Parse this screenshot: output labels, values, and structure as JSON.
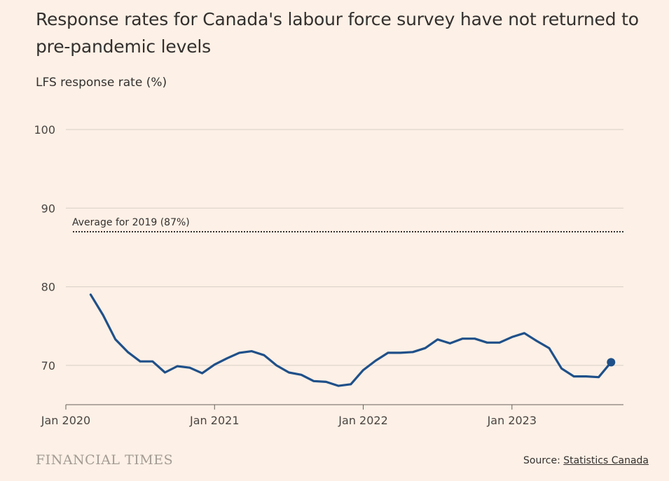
{
  "title": "Response rates for Canada's labour force survey have not returned to pre-pandemic levels",
  "subtitle": "LFS response rate (%)",
  "brand": "FINANCIAL TIMES",
  "source_prefix": "Source: ",
  "source_link": "Statistics Canada",
  "colors": {
    "background": "#fdf0e6",
    "line": "#1f5089",
    "grid": "#d8cfc6",
    "reference": "#33302e"
  },
  "chart_data": {
    "type": "line",
    "title": "Response rates for Canada's labour force survey have not returned to pre-pandemic levels",
    "ylabel": "LFS response rate (%)",
    "xlabel": "",
    "ylim": [
      65,
      100
    ],
    "xlim": [
      "2020-01",
      "2023-10"
    ],
    "yticks": [
      70,
      80,
      90,
      100
    ],
    "xticks": [
      "Jan 2020",
      "Jan 2021",
      "Jan 2022",
      "Jan 2023"
    ],
    "grid": true,
    "reference_line": {
      "value": 87,
      "label": "Average for 2019 (87%)"
    },
    "series": [
      {
        "x": [
          "2020-03",
          "2020-04",
          "2020-05",
          "2020-06",
          "2020-07",
          "2020-08",
          "2020-09",
          "2020-10",
          "2020-11",
          "2020-12",
          "2021-01",
          "2021-02",
          "2021-03",
          "2021-04",
          "2021-05",
          "2021-06",
          "2021-07",
          "2021-08",
          "2021-09",
          "2021-10",
          "2021-11",
          "2021-12",
          "2022-01",
          "2022-02",
          "2022-03",
          "2022-04",
          "2022-05",
          "2022-06",
          "2022-07",
          "2022-08",
          "2022-09",
          "2022-10",
          "2022-11",
          "2022-12",
          "2023-01",
          "2023-02",
          "2023-03",
          "2023-04",
          "2023-05",
          "2023-06",
          "2023-07",
          "2023-08",
          "2023-09"
        ],
        "values": [
          79.0,
          76.4,
          73.3,
          71.7,
          70.5,
          70.5,
          69.1,
          69.9,
          69.7,
          69.0,
          70.1,
          70.9,
          71.6,
          71.8,
          71.3,
          70.0,
          69.1,
          68.8,
          68.0,
          67.9,
          67.4,
          67.6,
          69.4,
          70.6,
          71.6,
          71.6,
          71.7,
          72.2,
          73.3,
          72.8,
          73.4,
          73.4,
          72.9,
          72.9,
          73.6,
          74.1,
          73.1,
          72.2,
          69.6,
          68.6,
          68.6,
          68.5,
          70.4
        ],
        "last_point_marker": true
      }
    ]
  }
}
